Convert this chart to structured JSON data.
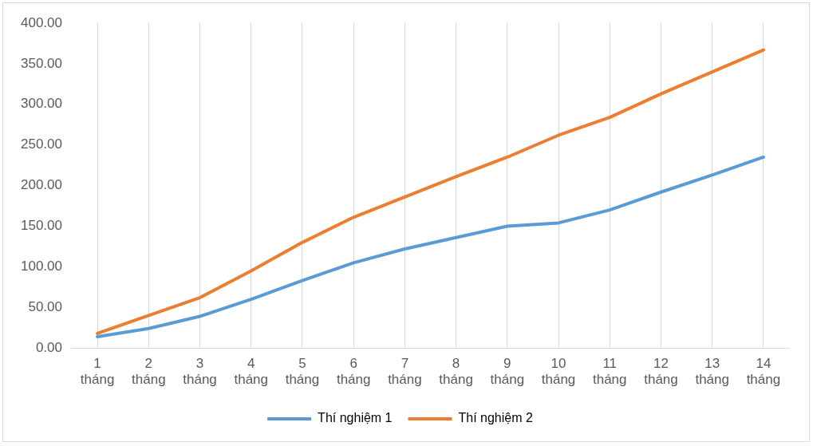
{
  "chart_data": {
    "type": "line",
    "categories": [
      "1 tháng",
      "2 tháng",
      "3 tháng",
      "4 tháng",
      "5 tháng",
      "6 tháng",
      "7 tháng",
      "8 tháng",
      "9 tháng",
      "10 tháng",
      "11 tháng",
      "12 tháng",
      "13 tháng",
      "14 tháng"
    ],
    "series": [
      {
        "name": "Thí nghiệm 1",
        "color": "#5b9bd5",
        "values": [
          14,
          24,
          39,
          60,
          83,
          105,
          122,
          136,
          150,
          154,
          170,
          192,
          213,
          235
        ]
      },
      {
        "name": "Thí nghiệm 2",
        "color": "#ed7d31",
        "values": [
          18,
          40,
          62,
          95,
          130,
          161,
          186,
          211,
          235,
          262,
          284,
          313,
          340,
          367
        ]
      }
    ],
    "ylim": [
      0,
      400
    ],
    "yticks": [
      {
        "value": 0,
        "label": "0.00"
      },
      {
        "value": 50,
        "label": "50.00"
      },
      {
        "value": 100,
        "label": "100.00"
      },
      {
        "value": 150,
        "label": "150.00"
      },
      {
        "value": 200,
        "label": "200.00"
      },
      {
        "value": 250,
        "label": "250.00"
      },
      {
        "value": 300,
        "label": "300.00"
      },
      {
        "value": 350,
        "label": "350.00"
      },
      {
        "value": 400,
        "label": "400.00"
      }
    ],
    "grid": "x",
    "legend": "bottom",
    "marker": "none",
    "line_style": "solid"
  }
}
